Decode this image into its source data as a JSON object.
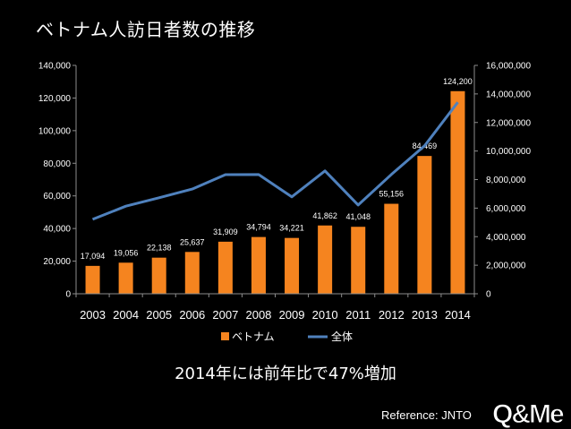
{
  "title": "ベトナム人訪日者数の推移",
  "note": "2014年には前年比で47%増加",
  "reference": "Reference: JNTO",
  "logo_text": "Q&Me",
  "colors": {
    "bar": "#f5841f",
    "line": "#4f81bd",
    "axis": "#8c8c8c",
    "text": "#ffffff",
    "background": "#000000"
  },
  "chart_data": {
    "type": "bar",
    "categories": [
      "2003",
      "2004",
      "2005",
      "2006",
      "2007",
      "2008",
      "2009",
      "2010",
      "2011",
      "2012",
      "2013",
      "2014"
    ],
    "series": [
      {
        "name": "ベトナム",
        "type": "bar",
        "axis": "left",
        "values": [
          17094,
          19056,
          22138,
          25637,
          31909,
          34794,
          34221,
          41862,
          41048,
          55156,
          84469,
          124200
        ],
        "labels": [
          "17,094",
          "19,056",
          "22,138",
          "25,637",
          "31,909",
          "34,794",
          "34,221",
          "41,862",
          "41,048",
          "55,156",
          "84,469",
          "124,200"
        ]
      },
      {
        "name": "全体",
        "type": "line",
        "axis": "right",
        "values": [
          5212000,
          6138000,
          6728000,
          7334000,
          8347000,
          8351000,
          6790000,
          8611000,
          6219000,
          8358000,
          10364000,
          13413000
        ]
      }
    ],
    "y_left": {
      "min": 0,
      "max": 140000,
      "ticks": [
        0,
        20000,
        40000,
        60000,
        80000,
        100000,
        120000,
        140000
      ],
      "tick_labels": [
        "0",
        "20,000",
        "40,000",
        "60,000",
        "80,000",
        "100,000",
        "120,000",
        "140,000"
      ]
    },
    "y_right": {
      "min": 0,
      "max": 16000000,
      "ticks": [
        0,
        2000000,
        4000000,
        6000000,
        8000000,
        10000000,
        12000000,
        14000000,
        16000000
      ],
      "tick_labels": [
        "0",
        "2,000,000",
        "4,000,000",
        "6,000,000",
        "8,000,000",
        "10,000,000",
        "12,000,000",
        "14,000,000",
        "16,000,000"
      ]
    },
    "grid": false,
    "legend": {
      "placement": "bottom",
      "entries": [
        {
          "label": "ベトナム",
          "kind": "bar"
        },
        {
          "label": "全体",
          "kind": "line"
        }
      ]
    }
  }
}
